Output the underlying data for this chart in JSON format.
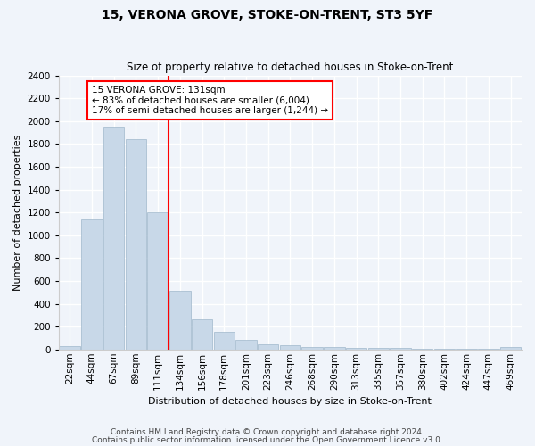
{
  "title": "15, VERONA GROVE, STOKE-ON-TRENT, ST3 5YF",
  "subtitle": "Size of property relative to detached houses in Stoke-on-Trent",
  "xlabel": "Distribution of detached houses by size in Stoke-on-Trent",
  "ylabel": "Number of detached properties",
  "categories": [
    "22sqm",
    "44sqm",
    "67sqm",
    "89sqm",
    "111sqm",
    "134sqm",
    "156sqm",
    "178sqm",
    "201sqm",
    "223sqm",
    "246sqm",
    "268sqm",
    "290sqm",
    "313sqm",
    "335sqm",
    "357sqm",
    "380sqm",
    "402sqm",
    "424sqm",
    "447sqm",
    "469sqm"
  ],
  "values": [
    30,
    1140,
    1950,
    1840,
    1200,
    510,
    265,
    155,
    85,
    45,
    38,
    20,
    22,
    15,
    12,
    10,
    8,
    6,
    5,
    5,
    20
  ],
  "bar_color": "#c8d8e8",
  "bar_edge_color": "#a0b8cc",
  "vline_color": "red",
  "vline_position": 4.5,
  "annotation_text": "15 VERONA GROVE: 131sqm\n← 83% of detached houses are smaller (6,004)\n17% of semi-detached houses are larger (1,244) →",
  "annotation_box_color": "white",
  "annotation_box_edge": "red",
  "ylim": [
    0,
    2400
  ],
  "yticks": [
    0,
    200,
    400,
    600,
    800,
    1000,
    1200,
    1400,
    1600,
    1800,
    2000,
    2200,
    2400
  ],
  "footer1": "Contains HM Land Registry data © Crown copyright and database right 2024.",
  "footer2": "Contains public sector information licensed under the Open Government Licence v3.0.",
  "bg_color": "#f0f4fa",
  "plot_bg_color": "#f0f4fa",
  "grid_color": "white",
  "title_fontsize": 10,
  "subtitle_fontsize": 8.5,
  "axis_label_fontsize": 8,
  "tick_fontsize": 7.5,
  "footer_fontsize": 6.5
}
